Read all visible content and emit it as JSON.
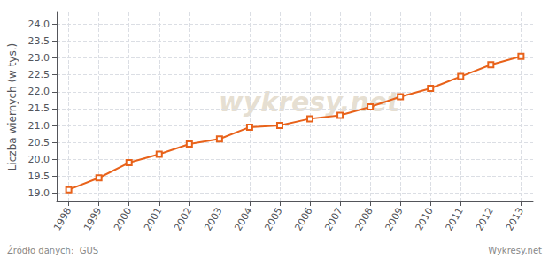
{
  "chart_data": {
    "type": "line",
    "ylabel": "Liczba wiernych (w tys.)",
    "watermark": "wykresy.net",
    "source": "Źródło danych:  GUS",
    "footer": "Wykresy.net",
    "x": [
      1998,
      1999,
      2000,
      2001,
      2002,
      2003,
      2004,
      2005,
      2006,
      2007,
      2008,
      2009,
      2010,
      2011,
      2012,
      2013
    ],
    "values": [
      19.1,
      19.45,
      19.9,
      20.15,
      20.45,
      20.6,
      20.95,
      21.0,
      21.2,
      21.3,
      21.55,
      21.85,
      22.1,
      22.45,
      22.8,
      23.05
    ],
    "color": "#E8621A",
    "marker": "square",
    "xlim": [
      1997.6,
      2013.4
    ],
    "xticks": [
      1998,
      1999,
      2000,
      2001,
      2002,
      2003,
      2004,
      2005,
      2006,
      2007,
      2008,
      2009,
      2010,
      2011,
      2012,
      2013
    ],
    "ylim": [
      18.75,
      24.35
    ],
    "yticks": [
      {
        "value": 19,
        "label": "19.0"
      },
      19.5,
      {
        "value": 20,
        "label": "20.0"
      },
      20.5,
      {
        "value": 21,
        "label": "21.0"
      },
      21.5,
      {
        "value": 22,
        "label": "22.0"
      },
      22.5,
      {
        "value": 23,
        "label": "23.0"
      },
      23.5,
      {
        "value": 24,
        "label": "24.0"
      }
    ],
    "grid": true
  }
}
